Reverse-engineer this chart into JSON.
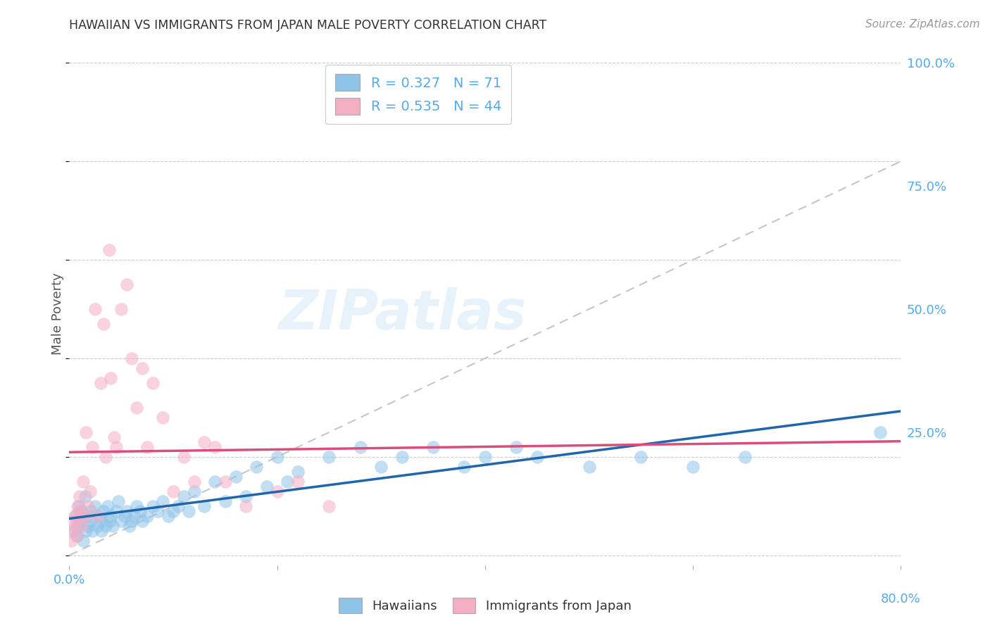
{
  "title": "HAWAIIAN VS IMMIGRANTS FROM JAPAN MALE POVERTY CORRELATION CHART",
  "source": "Source: ZipAtlas.com",
  "ylabel": "Male Poverty",
  "watermark": "ZIPatlas",
  "background_color": "#ffffff",
  "plot_bg_color": "#ffffff",
  "grid_color": "#c8c8c8",
  "hawaiians_color": "#8ec4e8",
  "japan_color": "#f4afc5",
  "hawaiians_line_color": "#2166ac",
  "japan_line_color": "#d94f7a",
  "diagonal_color": "#c0c0c0",
  "R_hawaiians": 0.327,
  "N_hawaiians": 71,
  "R_japan": 0.535,
  "N_japan": 44,
  "xlim": [
    0.0,
    0.8
  ],
  "ylim": [
    -0.02,
    1.0
  ],
  "yticks": [
    0.0,
    0.25,
    0.5,
    0.75,
    1.0
  ],
  "ytick_labels": [
    "",
    "25.0%",
    "50.0%",
    "75.0%",
    "100.0%"
  ],
  "hawaiians_x": [
    0.005,
    0.006,
    0.007,
    0.008,
    0.009,
    0.01,
    0.012,
    0.013,
    0.015,
    0.016,
    0.017,
    0.018,
    0.02,
    0.021,
    0.022,
    0.025,
    0.027,
    0.028,
    0.03,
    0.031,
    0.033,
    0.035,
    0.037,
    0.039,
    0.04,
    0.042,
    0.045,
    0.047,
    0.05,
    0.053,
    0.055,
    0.058,
    0.06,
    0.063,
    0.065,
    0.068,
    0.07,
    0.075,
    0.08,
    0.085,
    0.09,
    0.095,
    0.1,
    0.105,
    0.11,
    0.115,
    0.12,
    0.13,
    0.14,
    0.15,
    0.16,
    0.17,
    0.18,
    0.19,
    0.2,
    0.21,
    0.22,
    0.25,
    0.28,
    0.3,
    0.32,
    0.35,
    0.38,
    0.4,
    0.43,
    0.45,
    0.5,
    0.55,
    0.6,
    0.65,
    0.78
  ],
  "hawaiians_y": [
    0.05,
    0.08,
    0.04,
    0.06,
    0.1,
    0.07,
    0.09,
    0.03,
    0.12,
    0.05,
    0.08,
    0.06,
    0.07,
    0.09,
    0.05,
    0.1,
    0.06,
    0.08,
    0.07,
    0.05,
    0.09,
    0.06,
    0.1,
    0.07,
    0.08,
    0.06,
    0.09,
    0.11,
    0.07,
    0.08,
    0.09,
    0.06,
    0.07,
    0.08,
    0.1,
    0.09,
    0.07,
    0.08,
    0.1,
    0.09,
    0.11,
    0.08,
    0.09,
    0.1,
    0.12,
    0.09,
    0.13,
    0.1,
    0.15,
    0.11,
    0.16,
    0.12,
    0.18,
    0.14,
    0.2,
    0.15,
    0.17,
    0.2,
    0.22,
    0.18,
    0.2,
    0.22,
    0.18,
    0.2,
    0.22,
    0.2,
    0.18,
    0.2,
    0.18,
    0.2,
    0.25
  ],
  "japan_x": [
    0.002,
    0.003,
    0.004,
    0.005,
    0.006,
    0.007,
    0.008,
    0.009,
    0.01,
    0.011,
    0.012,
    0.013,
    0.015,
    0.016,
    0.018,
    0.02,
    0.022,
    0.025,
    0.027,
    0.03,
    0.033,
    0.035,
    0.038,
    0.04,
    0.043,
    0.045,
    0.05,
    0.055,
    0.06,
    0.065,
    0.07,
    0.075,
    0.08,
    0.09,
    0.1,
    0.11,
    0.12,
    0.13,
    0.14,
    0.15,
    0.17,
    0.2,
    0.22,
    0.25
  ],
  "japan_y": [
    0.03,
    0.05,
    0.07,
    0.08,
    0.06,
    0.04,
    0.1,
    0.09,
    0.12,
    0.08,
    0.06,
    0.15,
    0.08,
    0.25,
    0.1,
    0.13,
    0.22,
    0.5,
    0.08,
    0.35,
    0.47,
    0.2,
    0.62,
    0.36,
    0.24,
    0.22,
    0.5,
    0.55,
    0.4,
    0.3,
    0.38,
    0.22,
    0.35,
    0.28,
    0.13,
    0.2,
    0.15,
    0.23,
    0.22,
    0.15,
    0.1,
    0.13,
    0.15,
    0.1
  ]
}
